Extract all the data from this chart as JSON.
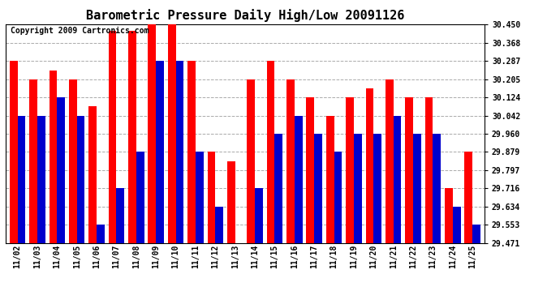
{
  "title": "Barometric Pressure Daily High/Low 20091126",
  "copyright": "Copyright 2009 Cartronics.com",
  "dates": [
    "11/02",
    "11/03",
    "11/04",
    "11/05",
    "11/06",
    "11/07",
    "11/08",
    "11/09",
    "11/10",
    "11/11",
    "11/12",
    "11/13",
    "11/14",
    "11/15",
    "11/16",
    "11/17",
    "11/18",
    "11/19",
    "11/20",
    "11/21",
    "11/22",
    "11/23",
    "11/24",
    "11/25"
  ],
  "highs": [
    30.287,
    30.205,
    30.245,
    30.205,
    30.083,
    30.42,
    30.42,
    30.45,
    30.45,
    30.287,
    29.879,
    29.838,
    30.205,
    30.287,
    30.205,
    30.124,
    30.042,
    30.124,
    30.165,
    30.205,
    30.124,
    30.124,
    29.716,
    29.879
  ],
  "lows": [
    30.042,
    30.042,
    30.124,
    30.042,
    29.553,
    29.716,
    29.879,
    30.287,
    30.287,
    29.879,
    29.634,
    29.471,
    29.716,
    29.96,
    30.042,
    29.96,
    29.879,
    29.96,
    29.96,
    30.042,
    29.96,
    29.96,
    29.634,
    29.553
  ],
  "ymin": 29.471,
  "ymax": 30.45,
  "yticks": [
    30.45,
    30.368,
    30.287,
    30.205,
    30.124,
    30.042,
    29.96,
    29.879,
    29.797,
    29.716,
    29.634,
    29.553,
    29.471
  ],
  "high_color": "#ff0000",
  "low_color": "#0000cc",
  "bg_color": "#ffffff",
  "grid_color": "#aaaaaa",
  "title_fontsize": 11,
  "copyright_fontsize": 7
}
